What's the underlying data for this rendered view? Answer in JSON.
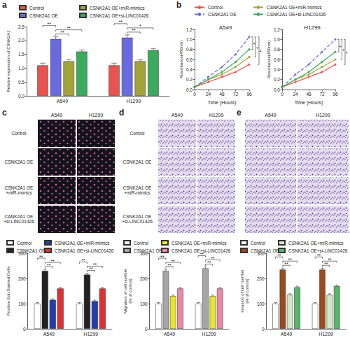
{
  "panel_labels": [
    "a",
    "b",
    "c",
    "d",
    "e"
  ],
  "chart_data": [
    {
      "type": "bar",
      "y_label": "Relative expression of CSNK2A1",
      "categories": [
        "A549",
        "H1299"
      ],
      "ylim": [
        0,
        2.5
      ],
      "yticks": [
        {
          "value": 0,
          "label": "0.0"
        },
        0.5,
        {
          "value": 1,
          "label": "1.0"
        },
        1.5,
        {
          "value": 2,
          "label": "2.0"
        },
        2.5
      ],
      "grid": false,
      "legend": "top",
      "series": [
        {
          "name": "Control",
          "color": "#e8534f",
          "values": [
            1.1,
            1.1
          ],
          "errors": [
            0.08,
            0.08
          ]
        },
        {
          "name": "CSNK2A1 OE",
          "color": "#6a6ae0",
          "values": [
            2.05,
            2.1
          ],
          "errors": [
            0.08,
            0.1
          ]
        },
        {
          "name": "CSNK2A1 OE+miR-mimics",
          "color": "#a3a33a",
          "values": [
            1.25,
            1.25
          ],
          "errors": [
            0.06,
            0.06
          ]
        },
        {
          "name": "CSNK2A1 OE+si-LINC01426",
          "color": "#3aaa5c",
          "values": [
            1.6,
            1.65
          ],
          "errors": [
            0.06,
            0.06
          ]
        }
      ],
      "significance": [
        {
          "group": "A549",
          "a": "CSNK2A1 OE",
          "b": "CSNK2A1 OE+miR-mimics",
          "label": "**"
        },
        {
          "group": "A549",
          "a": "CSNK2A1 OE",
          "b": "CSNK2A1 OE+si-LINC01426",
          "label": "**"
        },
        {
          "group": "A549",
          "a": "Control",
          "b": "CSNK2A1 OE",
          "label": "**"
        },
        {
          "group": "H1299",
          "a": "CSNK2A1 OE",
          "b": "CSNK2A1 OE+miR-mimics",
          "label": "**"
        },
        {
          "group": "H1299",
          "a": "CSNK2A1 OE",
          "b": "CSNK2A1 OE+si-LINC01426",
          "label": "*"
        },
        {
          "group": "H1299",
          "a": "Control",
          "b": "CSNK2A1 OE",
          "label": "**"
        }
      ]
    },
    {
      "type": "line",
      "title": "A549",
      "x_label": "Time (Hours)",
      "y_label": "Absorbance(450nm)",
      "x": [
        0,
        24,
        48,
        72,
        96
      ],
      "xlim": [
        0,
        96
      ],
      "xticks": [
        0,
        24,
        48,
        72,
        96
      ],
      "ylim": [
        0,
        1.2
      ],
      "yticks": [
        {
          "value": 0,
          "label": "0.0"
        },
        0.2,
        0.4,
        0.6,
        0.8,
        {
          "value": 1,
          "label": "1.0"
        },
        1.2
      ],
      "grid": false,
      "legend": "top",
      "marker": "circle",
      "series": [
        {
          "name": "Control",
          "color": "#e8534f",
          "line_style": "solid",
          "values": [
            0.05,
            0.15,
            0.25,
            0.35,
            0.5
          ]
        },
        {
          "name": "CSNK2A1 OE",
          "color": "#6a6ae0",
          "line_style": "dashed",
          "values": [
            0.05,
            0.25,
            0.45,
            0.7,
            1.05
          ]
        },
        {
          "name": "CSNK2A1 OE+miR-mimics",
          "color": "#a3a33a",
          "line_style": "solid",
          "values": [
            0.05,
            0.2,
            0.3,
            0.45,
            0.65
          ]
        },
        {
          "name": "CSNK2A1 OE+si-LINC01426",
          "color": "#3aaa5c",
          "line_style": "solid",
          "values": [
            0.05,
            0.2,
            0.35,
            0.55,
            0.8
          ]
        }
      ],
      "significance": [
        {
          "a": "CSNK2A1 OE",
          "b": "CSNK2A1 OE+si-LINC01426",
          "label": "*"
        },
        {
          "a": "CSNK2A1 OE",
          "b": "CSNK2A1 OE+miR-mimics",
          "label": "*"
        },
        {
          "a": "CSNK2A1 OE",
          "b": "Control",
          "label": "*"
        }
      ]
    },
    {
      "type": "line",
      "title": "H1299",
      "x_label": "Time (Hours)",
      "y_label": "Absorbance(450nm)",
      "x": [
        0,
        24,
        48,
        72,
        96
      ],
      "xlim": [
        0,
        96
      ],
      "xticks": [
        0,
        24,
        48,
        72,
        96
      ],
      "ylim": [
        0,
        1.2
      ],
      "yticks": [
        {
          "value": 0,
          "label": "0.0"
        },
        0.2,
        0.4,
        0.6,
        0.8,
        {
          "value": 1,
          "label": "1.0"
        },
        1.2
      ],
      "grid": false,
      "marker": "circle",
      "series": [
        {
          "name": "Control",
          "color": "#e8534f",
          "line_style": "solid",
          "values": [
            0.05,
            0.15,
            0.25,
            0.35,
            0.5
          ]
        },
        {
          "name": "CSNK2A1 OE",
          "color": "#6a6ae0",
          "line_style": "dashed",
          "values": [
            0.05,
            0.3,
            0.5,
            0.75,
            1.0
          ]
        },
        {
          "name": "CSNK2A1 OE+miR-mimics",
          "color": "#a3a33a",
          "line_style": "solid",
          "values": [
            0.05,
            0.2,
            0.3,
            0.45,
            0.6
          ]
        },
        {
          "name": "CSNK2A1 OE+si-LINC01426",
          "color": "#3aaa5c",
          "line_style": "solid",
          "values": [
            0.05,
            0.2,
            0.35,
            0.55,
            0.75
          ]
        }
      ],
      "significance": [
        {
          "a": "CSNK2A1 OE",
          "b": "CSNK2A1 OE+si-LINC01426",
          "label": "*"
        },
        {
          "a": "CSNK2A1 OE",
          "b": "CSNK2A1 OE+miR-mimics",
          "label": "*"
        },
        {
          "a": "CSNK2A1 OE",
          "b": "Control",
          "label": "*"
        }
      ]
    },
    {
      "type": "bar",
      "y_label": "Positive Edu Stained Cells",
      "categories": [
        "A549",
        "H1299"
      ],
      "ylim": [
        0,
        300
      ],
      "yticks": [
        0,
        100,
        200,
        300
      ],
      "grid": false,
      "legend": "top",
      "series": [
        {
          "name": "Control",
          "color": "#ffffff",
          "values": [
            100,
            100
          ],
          "errors": [
            4,
            4
          ]
        },
        {
          "name": "CSNK2A1 OE",
          "color": "#222222",
          "values": [
            230,
            215
          ],
          "errors": [
            6,
            6
          ]
        },
        {
          "name": "CSNK2A1 OE+miR-mimics",
          "color": "#1f3fb0",
          "values": [
            115,
            110
          ],
          "errors": [
            4,
            4
          ]
        },
        {
          "name": "CSNK2A1 OE+si-LINC01426",
          "color": "#e03030",
          "values": [
            160,
            160
          ],
          "errors": [
            4,
            4
          ]
        }
      ],
      "significance": [
        {
          "group": "A549",
          "a": "CSNK2A1 OE",
          "b": "CSNK2A1 OE+miR-mimics",
          "label": "**"
        },
        {
          "group": "A549",
          "a": "CSNK2A1 OE",
          "b": "CSNK2A1 OE+si-LINC01426",
          "label": "**"
        },
        {
          "group": "A549",
          "a": "Control",
          "b": "CSNK2A1 OE",
          "label": "**"
        },
        {
          "group": "H1299",
          "a": "CSNK2A1 OE",
          "b": "CSNK2A1 OE+miR-mimics",
          "label": "**"
        },
        {
          "group": "H1299",
          "a": "CSNK2A1 OE",
          "b": "CSNK2A1 OE+si-LINC01426",
          "label": "**"
        },
        {
          "group": "H1299",
          "a": "Control",
          "b": "CSNK2A1 OE",
          "label": "**"
        }
      ]
    },
    {
      "type": "bar",
      "y_label": "Migration of cell number\n(% of control)",
      "categories": [
        "A549",
        "H1299"
      ],
      "ylim": [
        0,
        300
      ],
      "yticks": [
        0,
        100,
        200,
        300
      ],
      "grid": false,
      "legend": "top",
      "series": [
        {
          "name": "Control",
          "color": "#ffffff",
          "values": [
            100,
            100
          ],
          "errors": [
            4,
            4
          ]
        },
        {
          "name": "CSNK2A1 OE",
          "color": "#a6a6a6",
          "values": [
            230,
            240
          ],
          "errors": [
            6,
            6
          ]
        },
        {
          "name": "CSNK2A1 OE+miR-mimics",
          "color": "#e6e62e",
          "values": [
            130,
            130
          ],
          "errors": [
            4,
            4
          ]
        },
        {
          "name": "CSNK2A1 OE+si-LINC01426",
          "color": "#e88aa6",
          "values": [
            160,
            160
          ],
          "errors": [
            4,
            4
          ]
        }
      ],
      "significance": [
        {
          "group": "A549",
          "a": "CSNK2A1 OE",
          "b": "CSNK2A1 OE+miR-mimics",
          "label": "**"
        },
        {
          "group": "A549",
          "a": "CSNK2A1 OE",
          "b": "CSNK2A1 OE+si-LINC01426",
          "label": "**"
        },
        {
          "group": "A549",
          "a": "Control",
          "b": "CSNK2A1 OE",
          "label": "**"
        },
        {
          "group": "H1299",
          "a": "CSNK2A1 OE",
          "b": "CSNK2A1 OE+miR-mimics",
          "label": "**"
        },
        {
          "group": "H1299",
          "a": "CSNK2A1 OE",
          "b": "CSNK2A1 OE+si-LINC01426",
          "label": "**"
        },
        {
          "group": "H1299",
          "a": "Control",
          "b": "CSNK2A1 OE",
          "label": "**"
        }
      ]
    },
    {
      "type": "bar",
      "y_label": "Invasion of cell number\n(% of control)",
      "categories": [
        "A549",
        "H1299"
      ],
      "ylim": [
        0,
        300
      ],
      "yticks": [
        0,
        100,
        200,
        300
      ],
      "grid": false,
      "legend": "top",
      "series": [
        {
          "name": "Control",
          "color": "#ffffff",
          "values": [
            100,
            100
          ],
          "errors": [
            4,
            4
          ]
        },
        {
          "name": "CSNK2A1 OE",
          "color": "#9c4a1c",
          "values": [
            235,
            235
          ],
          "errors": [
            6,
            6
          ]
        },
        {
          "name": "CSNK2A1 OE+miR-mimics",
          "color": "#cfe8c8",
          "values": [
            135,
            135
          ],
          "errors": [
            4,
            4
          ]
        },
        {
          "name": "CSNK2A1 OE+si-LINC01426",
          "color": "#58b36b",
          "values": [
            165,
            170
          ],
          "errors": [
            4,
            4
          ]
        }
      ],
      "significance": [
        {
          "group": "A549",
          "a": "CSNK2A1 OE",
          "b": "CSNK2A1 OE+miR-mimics",
          "label": "**"
        },
        {
          "group": "A549",
          "a": "CSNK2A1 OE",
          "b": "CSNK2A1 OE+si-LINC01426",
          "label": "**"
        },
        {
          "group": "A549",
          "a": "Control",
          "b": "CSNK2A1 OE",
          "label": "**"
        },
        {
          "group": "H1299",
          "a": "CSNK2A1 OE",
          "b": "CSNK2A1 OE+miR-mimics",
          "label": "**"
        },
        {
          "group": "H1299",
          "a": "CSNK2A1 OE",
          "b": "CSNK2A1 OE+si-LINC01426",
          "label": "**"
        },
        {
          "group": "H1299",
          "a": "Control",
          "b": "CSNK2A1 OE",
          "label": "**"
        }
      ]
    }
  ],
  "image_panels": [
    {
      "columns": [
        "A549",
        "H1299"
      ],
      "rows": [
        "Control",
        "CSNK2A1 OE",
        "CSNK2A1 OE\n+miR-mimics",
        "CANK2A1 OE\n+si-LINC01426"
      ]
    },
    {
      "columns": [
        "A549",
        "H1299"
      ],
      "rows": [
        "Control",
        "CSNK2A1 OE",
        "CSNK2A1 OE\n+miR-mimics",
        "CSNK2A1 OE\n+si-LINC01426"
      ]
    },
    {
      "columns": [
        "A549",
        "H1299"
      ]
    }
  ]
}
